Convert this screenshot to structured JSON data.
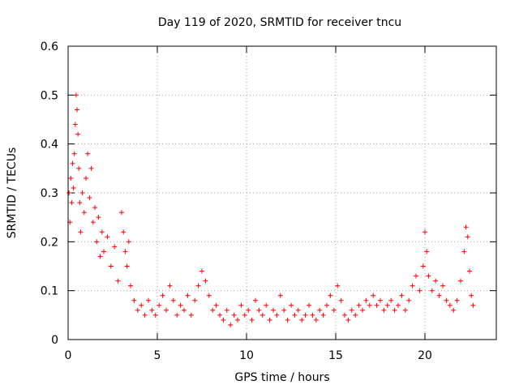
{
  "chart_data": {
    "type": "scatter",
    "title": "Day 119 of 2020, SRMTID for receiver tncu",
    "xlabel": "GPS time / hours",
    "ylabel": "SRMTID / TECUs",
    "xlim": [
      0,
      24
    ],
    "ylim": [
      0,
      0.6
    ],
    "x_ticks": [
      0,
      5,
      10,
      15,
      20
    ],
    "x_tick_labels": [
      "0",
      "5",
      "10",
      "15",
      "20"
    ],
    "y_ticks": [
      0,
      0.1,
      0.2,
      0.3,
      0.4,
      0.5,
      0.6
    ],
    "y_tick_labels": [
      "0",
      "0.1",
      "0.2",
      "0.3",
      "0.4",
      "0.5",
      "0.6"
    ],
    "grid": true,
    "marker": "+",
    "color": "#ff0000",
    "series": [
      {
        "name": "SRMTID",
        "points": [
          [
            0.05,
            0.3
          ],
          [
            0.1,
            0.24
          ],
          [
            0.15,
            0.33
          ],
          [
            0.2,
            0.28
          ],
          [
            0.25,
            0.36
          ],
          [
            0.3,
            0.31
          ],
          [
            0.35,
            0.38
          ],
          [
            0.4,
            0.44
          ],
          [
            0.45,
            0.5
          ],
          [
            0.5,
            0.47
          ],
          [
            0.55,
            0.42
          ],
          [
            0.6,
            0.35
          ],
          [
            0.65,
            0.28
          ],
          [
            0.7,
            0.22
          ],
          [
            0.8,
            0.3
          ],
          [
            0.9,
            0.26
          ],
          [
            1.0,
            0.33
          ],
          [
            1.1,
            0.38
          ],
          [
            1.2,
            0.29
          ],
          [
            1.3,
            0.35
          ],
          [
            1.4,
            0.24
          ],
          [
            1.5,
            0.27
          ],
          [
            1.6,
            0.2
          ],
          [
            1.7,
            0.25
          ],
          [
            1.8,
            0.17
          ],
          [
            1.9,
            0.22
          ],
          [
            2.0,
            0.18
          ],
          [
            2.2,
            0.21
          ],
          [
            2.4,
            0.15
          ],
          [
            2.6,
            0.19
          ],
          [
            2.8,
            0.12
          ],
          [
            3.0,
            0.26
          ],
          [
            3.1,
            0.22
          ],
          [
            3.2,
            0.18
          ],
          [
            3.3,
            0.15
          ],
          [
            3.4,
            0.2
          ],
          [
            3.5,
            0.11
          ],
          [
            3.7,
            0.08
          ],
          [
            3.9,
            0.06
          ],
          [
            4.1,
            0.07
          ],
          [
            4.3,
            0.05
          ],
          [
            4.5,
            0.08
          ],
          [
            4.7,
            0.06
          ],
          [
            4.9,
            0.05
          ],
          [
            5.1,
            0.07
          ],
          [
            5.3,
            0.09
          ],
          [
            5.5,
            0.06
          ],
          [
            5.7,
            0.11
          ],
          [
            5.9,
            0.08
          ],
          [
            6.1,
            0.05
          ],
          [
            6.3,
            0.07
          ],
          [
            6.5,
            0.06
          ],
          [
            6.7,
            0.09
          ],
          [
            6.9,
            0.05
          ],
          [
            7.1,
            0.08
          ],
          [
            7.3,
            0.11
          ],
          [
            7.5,
            0.14
          ],
          [
            7.7,
            0.12
          ],
          [
            7.9,
            0.09
          ],
          [
            8.1,
            0.06
          ],
          [
            8.3,
            0.07
          ],
          [
            8.5,
            0.05
          ],
          [
            8.7,
            0.04
          ],
          [
            8.9,
            0.06
          ],
          [
            9.1,
            0.03
          ],
          [
            9.3,
            0.05
          ],
          [
            9.5,
            0.04
          ],
          [
            9.7,
            0.07
          ],
          [
            9.9,
            0.05
          ],
          [
            10.1,
            0.06
          ],
          [
            10.3,
            0.04
          ],
          [
            10.5,
            0.08
          ],
          [
            10.7,
            0.06
          ],
          [
            10.9,
            0.05
          ],
          [
            11.1,
            0.07
          ],
          [
            11.3,
            0.04
          ],
          [
            11.5,
            0.06
          ],
          [
            11.7,
            0.05
          ],
          [
            11.9,
            0.09
          ],
          [
            12.1,
            0.06
          ],
          [
            12.3,
            0.04
          ],
          [
            12.5,
            0.07
          ],
          [
            12.7,
            0.05
          ],
          [
            12.9,
            0.06
          ],
          [
            13.1,
            0.04
          ],
          [
            13.3,
            0.05
          ],
          [
            13.5,
            0.07
          ],
          [
            13.7,
            0.05
          ],
          [
            13.9,
            0.04
          ],
          [
            14.1,
            0.06
          ],
          [
            14.3,
            0.05
          ],
          [
            14.5,
            0.07
          ],
          [
            14.7,
            0.09
          ],
          [
            14.9,
            0.06
          ],
          [
            15.1,
            0.11
          ],
          [
            15.3,
            0.08
          ],
          [
            15.5,
            0.05
          ],
          [
            15.7,
            0.04
          ],
          [
            15.9,
            0.06
          ],
          [
            16.1,
            0.05
          ],
          [
            16.3,
            0.07
          ],
          [
            16.5,
            0.06
          ],
          [
            16.7,
            0.08
          ],
          [
            16.9,
            0.07
          ],
          [
            17.1,
            0.09
          ],
          [
            17.3,
            0.07
          ],
          [
            17.5,
            0.08
          ],
          [
            17.7,
            0.06
          ],
          [
            17.9,
            0.07
          ],
          [
            18.1,
            0.08
          ],
          [
            18.3,
            0.06
          ],
          [
            18.5,
            0.07
          ],
          [
            18.7,
            0.09
          ],
          [
            18.9,
            0.06
          ],
          [
            19.1,
            0.08
          ],
          [
            19.3,
            0.11
          ],
          [
            19.5,
            0.13
          ],
          [
            19.7,
            0.1
          ],
          [
            19.9,
            0.15
          ],
          [
            20.0,
            0.22
          ],
          [
            20.1,
            0.18
          ],
          [
            20.2,
            0.13
          ],
          [
            20.4,
            0.1
          ],
          [
            20.6,
            0.12
          ],
          [
            20.8,
            0.09
          ],
          [
            21.0,
            0.11
          ],
          [
            21.2,
            0.08
          ],
          [
            21.4,
            0.07
          ],
          [
            21.6,
            0.06
          ],
          [
            21.8,
            0.08
          ],
          [
            22.0,
            0.12
          ],
          [
            22.2,
            0.18
          ],
          [
            22.3,
            0.23
          ],
          [
            22.4,
            0.21
          ],
          [
            22.5,
            0.14
          ],
          [
            22.6,
            0.09
          ],
          [
            22.7,
            0.07
          ]
        ]
      }
    ]
  }
}
